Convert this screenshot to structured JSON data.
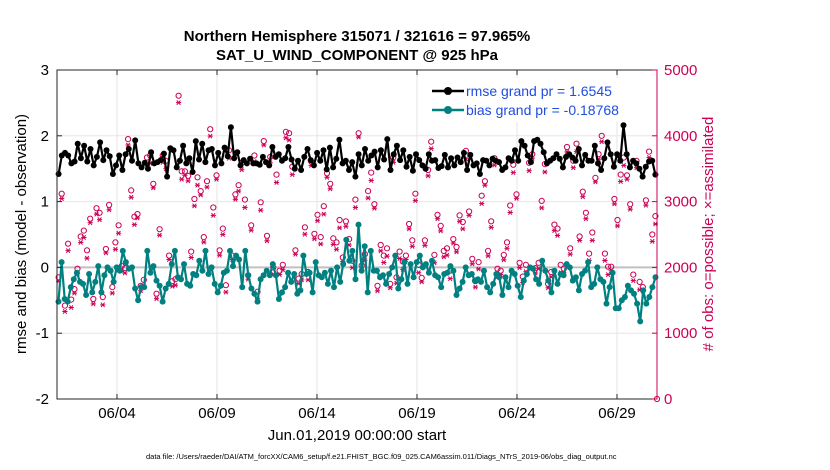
{
  "chart_data": {
    "type": "line",
    "title_line1": "Northern Hemisphere 315071 / 321616 = 97.965%",
    "title_line2": "SAT_U_WIND_COMPONENT @ 925 hPa",
    "xlabel": "Jun.01,2019 00:00:00 start",
    "ylabel_left": "rmse and bias (model - observation)",
    "ylabel_right": "# of obs: o=possible; ×=assimilated",
    "footer": "data file: /Users/raeder/DAI/ATM_forcXX/CAM6_setup/f.e21.FHIST_BGC.f09_025.CAM6assim.011/Diags_NTrS_2019-06/obs_diag_output.nc",
    "x_range": [
      0,
      30
    ],
    "x_ticks": [
      3,
      8,
      13,
      18,
      23,
      28
    ],
    "x_tick_labels": [
      "06/04",
      "06/09",
      "06/14",
      "06/19",
      "06/24",
      "06/29"
    ],
    "ylim_left": [
      -2,
      3
    ],
    "yticks_left": [
      "-2",
      "-1",
      "0",
      "1",
      "2",
      "3"
    ],
    "ylim_right": [
      0,
      5000
    ],
    "yticks_right": [
      "0",
      "1000",
      "2000",
      "3000",
      "4000",
      "5000"
    ],
    "grid": true,
    "legend_position": "top-right",
    "colors": {
      "rmse": "#000000",
      "bias": "#008080",
      "obs": "#cc0055",
      "zero_line": "#c0c0c0",
      "legend_text": "#1f4de0",
      "right_axis": "#cc0055"
    },
    "series": [
      {
        "name": "rmse grand pr = 1.6545",
        "values": [
          1.42,
          1.7,
          1.74,
          1.7,
          1.58,
          1.61,
          1.88,
          1.66,
          1.85,
          1.61,
          1.8,
          1.55,
          1.68,
          1.9,
          1.63,
          1.78,
          1.69,
          1.42,
          1.55,
          1.7,
          1.48,
          1.72,
          1.8,
          1.62,
          1.93,
          1.58,
          1.52,
          1.59,
          1.5,
          1.75,
          1.58,
          1.6,
          1.63,
          1.73,
          1.38,
          1.81,
          1.78,
          1.52,
          1.62,
          1.85,
          1.58,
          1.66,
          1.45,
          1.92,
          1.64,
          1.88,
          1.6,
          1.78,
          1.8,
          1.55,
          1.74,
          1.58,
          1.82,
          1.69,
          2.13,
          1.66,
          1.75,
          1.55,
          1.63,
          1.58,
          1.65,
          1.58,
          1.58,
          1.56,
          1.68,
          1.6,
          1.55,
          1.83,
          1.68,
          1.72,
          1.62,
          1.66,
          1.83,
          1.64,
          1.5,
          1.62,
          1.48,
          1.68,
          1.8,
          1.63,
          1.55,
          1.74,
          1.62,
          1.78,
          1.49,
          1.82,
          1.52,
          1.65,
          1.94,
          1.58,
          1.62,
          1.48,
          1.6,
          1.38,
          1.72,
          1.55,
          1.8,
          1.62,
          1.7,
          1.76,
          1.52,
          1.78,
          1.64,
          1.95,
          1.48,
          1.72,
          1.85,
          1.63,
          1.78,
          1.53,
          1.68,
          1.47,
          1.72,
          1.63,
          1.55,
          1.5,
          1.72,
          1.62,
          1.63,
          1.51,
          1.54,
          1.71,
          1.52,
          1.66,
          1.55,
          1.67,
          1.6,
          1.74,
          1.48,
          1.71,
          1.55,
          1.58,
          1.42,
          1.63,
          1.62,
          1.55,
          1.65,
          1.62,
          1.6,
          1.48,
          1.52,
          1.66,
          1.62,
          1.78,
          1.62,
          1.92,
          1.85,
          1.7,
          1.6,
          1.92,
          1.94,
          1.88,
          1.75,
          1.58,
          1.62,
          1.66,
          1.72,
          1.65,
          1.52,
          1.68,
          1.72,
          1.67,
          1.62,
          1.8,
          1.55,
          1.71,
          1.62,
          1.62,
          1.85,
          1.58,
          1.48,
          1.66,
          1.9,
          1.72,
          1.53,
          1.72,
          1.62,
          2.16,
          1.72,
          1.52,
          1.62,
          1.58,
          1.5,
          1.38,
          1.53,
          1.61,
          1.62,
          1.41
        ]
      },
      {
        "name": "bias grand pr = -0.18768",
        "values": [
          -0.52,
          0.08,
          -0.48,
          -0.52,
          -0.3,
          -0.18,
          -0.08,
          -0.22,
          -0.25,
          -0.42,
          -0.1,
          -0.38,
          -0.22,
          0.02,
          -0.38,
          -0.12,
          0.0,
          -0.05,
          -0.22,
          0.0,
          -0.05,
          0.25,
          0.08,
          -0.02,
          0.0,
          -0.32,
          -0.5,
          -0.3,
          -0.3,
          0.25,
          -0.08,
          0.02,
          -0.2,
          -0.28,
          -0.52,
          -0.32,
          -0.25,
          0.05,
          0.25,
          -0.15,
          -0.18,
          0.05,
          -0.25,
          -0.28,
          -0.1,
          -0.12,
          0.1,
          -0.05,
          0.25,
          -0.1,
          0.0,
          -0.25,
          -0.38,
          -0.28,
          -0.08,
          -0.05,
          0.25,
          0.02,
          0.18,
          0.12,
          -0.3,
          0.25,
          -0.12,
          -0.32,
          -0.4,
          -0.52,
          -0.18,
          -0.12,
          -0.05,
          -0.12,
          0.05,
          -0.12,
          -0.48,
          -0.38,
          -0.3,
          -0.08,
          -0.22,
          -0.1,
          -0.4,
          -0.35,
          0.18,
          -0.1,
          -0.08,
          -0.38,
          0.08,
          -0.12,
          -0.15,
          -0.08,
          -0.25,
          -0.05,
          -0.3,
          0.0,
          -0.22,
          0.05,
          0.42,
          0.1,
          0.25,
          -0.18,
          0.65,
          -0.05,
          0.32,
          -0.38,
          0.25,
          -0.05,
          -0.05,
          -0.15,
          -0.12,
          -0.25,
          -0.1,
          0.0,
          0.18,
          -0.32,
          -0.18,
          0.08,
          -0.25,
          0.05,
          -0.15,
          0.08,
          0.18,
          0.0,
          0.05,
          -0.08,
          0.1,
          -0.12,
          -0.15,
          -0.3,
          -0.1,
          -0.08,
          0.02,
          -0.05,
          -0.42,
          -0.32,
          -0.22,
          0.0,
          -0.12,
          -0.1,
          -0.2,
          -0.18,
          -0.22,
          -0.05,
          -0.3,
          -0.38,
          -0.25,
          -0.1,
          -0.15,
          -0.42,
          -0.15,
          -0.3,
          -0.05,
          -0.1,
          -0.28,
          -0.45,
          -0.2,
          -0.1,
          0.0,
          -0.02,
          -0.18,
          -0.25,
          0.1,
          -0.05,
          -0.2,
          -0.38,
          -0.05,
          -0.25,
          -0.1,
          -0.12,
          0.05,
          0.0,
          -0.2,
          -0.15,
          -0.35,
          -0.1,
          -0.05,
          0.08,
          -0.3,
          -0.25,
          0.0,
          -0.18,
          -0.22,
          -0.55,
          -0.3,
          -0.08,
          -0.62,
          -0.62,
          -0.5,
          -0.45,
          -0.28,
          -0.35,
          -0.4,
          -0.55,
          -0.82,
          -0.35,
          -0.55,
          -0.45,
          -0.3,
          -0.15
        ]
      }
    ],
    "obs_possible_approx": [
      1850,
      3120,
      1420,
      2360,
      1510,
      1670,
      1980,
      2470,
      2560,
      2260,
      2740,
      1520,
      2900,
      2830,
      1550,
      2280,
      2950,
      1700,
      2380,
      2640,
      2020,
      1990,
      3950,
      3170,
      2770,
      2810,
      1720,
      1810,
      3670,
      3700,
      3270,
      1600,
      2580,
      3700,
      3620,
      2180,
      1790,
      1820,
      4610,
      3460,
      3460,
      3390,
      2240,
      3040,
      3370,
      3160,
      2460,
      3310,
      4100,
      2910,
      3400,
      2260,
      2590,
      1730,
      3780,
      2180,
      3110,
      3250,
      3590,
      3030,
      1880,
      2640,
      3700,
      1630,
      2990,
      3920,
      2480,
      3680,
      2000,
      3410,
      1950,
      2040,
      4060,
      4040,
      3530,
      2260,
      1830,
      1900,
      2610,
      1930,
      3610,
      2510,
      2800,
      2460,
      2930,
      3430,
      3270,
      2440,
      2380,
      2720,
      2150,
      2700,
      2430,
      2100,
      3030,
      4040,
      2030,
      2200,
      3160,
      3440,
      2960,
      1720,
      2340,
      2180,
      2290,
      1750,
      3670,
      1850,
      2240,
      2090,
      2180,
      2660,
      2410,
      3120,
      2040,
      1840,
      2410,
      3480,
      3910,
      2190,
      2800,
      2630,
      2250,
      2290,
      1950,
      2430,
      2310,
      2790,
      2690,
      3770,
      2850,
      2130,
      1790,
      2080,
      3090,
      3310,
      2250,
      2700,
      3660,
      1980,
      1950,
      2190,
      2380,
      2940,
      3560,
      3110,
      2070,
      1860,
      2040,
      3590,
      3720,
      1990,
      2070,
      3010,
      3570,
      1750,
      1930,
      2650,
      2590,
      2040,
      1980,
      3830,
      2290,
      3620,
      3880,
      2470,
      3150,
      2830,
      2210,
      2530,
      3360,
      3720,
      4000,
      2210,
      2010,
      2010,
      3040,
      2720,
      3410,
      3670,
      3400,
      2960,
      1890,
      3620,
      1780,
      1700,
      3020,
      3760,
      2500,
      2780
    ]
  }
}
